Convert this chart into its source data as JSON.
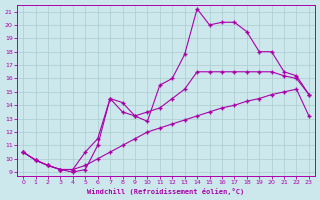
{
  "xlabel": "Windchill (Refroidissement éolien,°C)",
  "bg_color": "#cce8ec",
  "line_color": "#aa00aa",
  "grid_color": "#aacccc",
  "xlim_min": -0.5,
  "xlim_max": 23.5,
  "ylim_min": 8.7,
  "ylim_max": 21.5,
  "xticks": [
    0,
    1,
    2,
    3,
    4,
    5,
    6,
    7,
    8,
    9,
    10,
    11,
    12,
    13,
    14,
    15,
    16,
    17,
    18,
    19,
    20,
    21,
    22,
    23
  ],
  "yticks": [
    9,
    10,
    11,
    12,
    13,
    14,
    15,
    16,
    17,
    18,
    19,
    20,
    21
  ],
  "line_top_x": [
    0,
    1,
    2,
    3,
    4,
    5,
    6,
    7,
    8,
    9,
    10,
    11,
    12,
    13,
    14,
    15,
    16,
    17,
    18,
    19,
    20,
    21,
    22,
    23
  ],
  "line_top_y": [
    10.5,
    9.9,
    9.5,
    9.2,
    9.0,
    9.2,
    11.0,
    14.5,
    14.2,
    13.2,
    12.8,
    15.5,
    16.0,
    17.8,
    21.2,
    20.0,
    20.2,
    20.2,
    19.5,
    18.0,
    18.0,
    16.5,
    16.2,
    14.8
  ],
  "line_mid_x": [
    0,
    1,
    2,
    3,
    4,
    5,
    6,
    7,
    8,
    9,
    10,
    11,
    12,
    13,
    14,
    15,
    16,
    17,
    18,
    19,
    20,
    21,
    22,
    23
  ],
  "line_mid_y": [
    10.5,
    9.9,
    9.5,
    9.2,
    9.2,
    10.5,
    11.5,
    14.5,
    13.5,
    13.2,
    13.5,
    13.8,
    14.5,
    15.2,
    16.5,
    16.5,
    16.5,
    16.5,
    16.5,
    16.5,
    16.5,
    16.2,
    16.0,
    14.8
  ],
  "line_bot_x": [
    0,
    1,
    2,
    3,
    4,
    5,
    6,
    7,
    8,
    9,
    10,
    11,
    12,
    13,
    14,
    15,
    16,
    17,
    18,
    19,
    20,
    21,
    22,
    23
  ],
  "line_bot_y": [
    10.5,
    9.9,
    9.5,
    9.2,
    9.2,
    9.5,
    10.0,
    10.5,
    11.0,
    11.5,
    12.0,
    12.3,
    12.6,
    12.9,
    13.2,
    13.5,
    13.8,
    14.0,
    14.3,
    14.5,
    14.8,
    15.0,
    15.2,
    13.2
  ]
}
